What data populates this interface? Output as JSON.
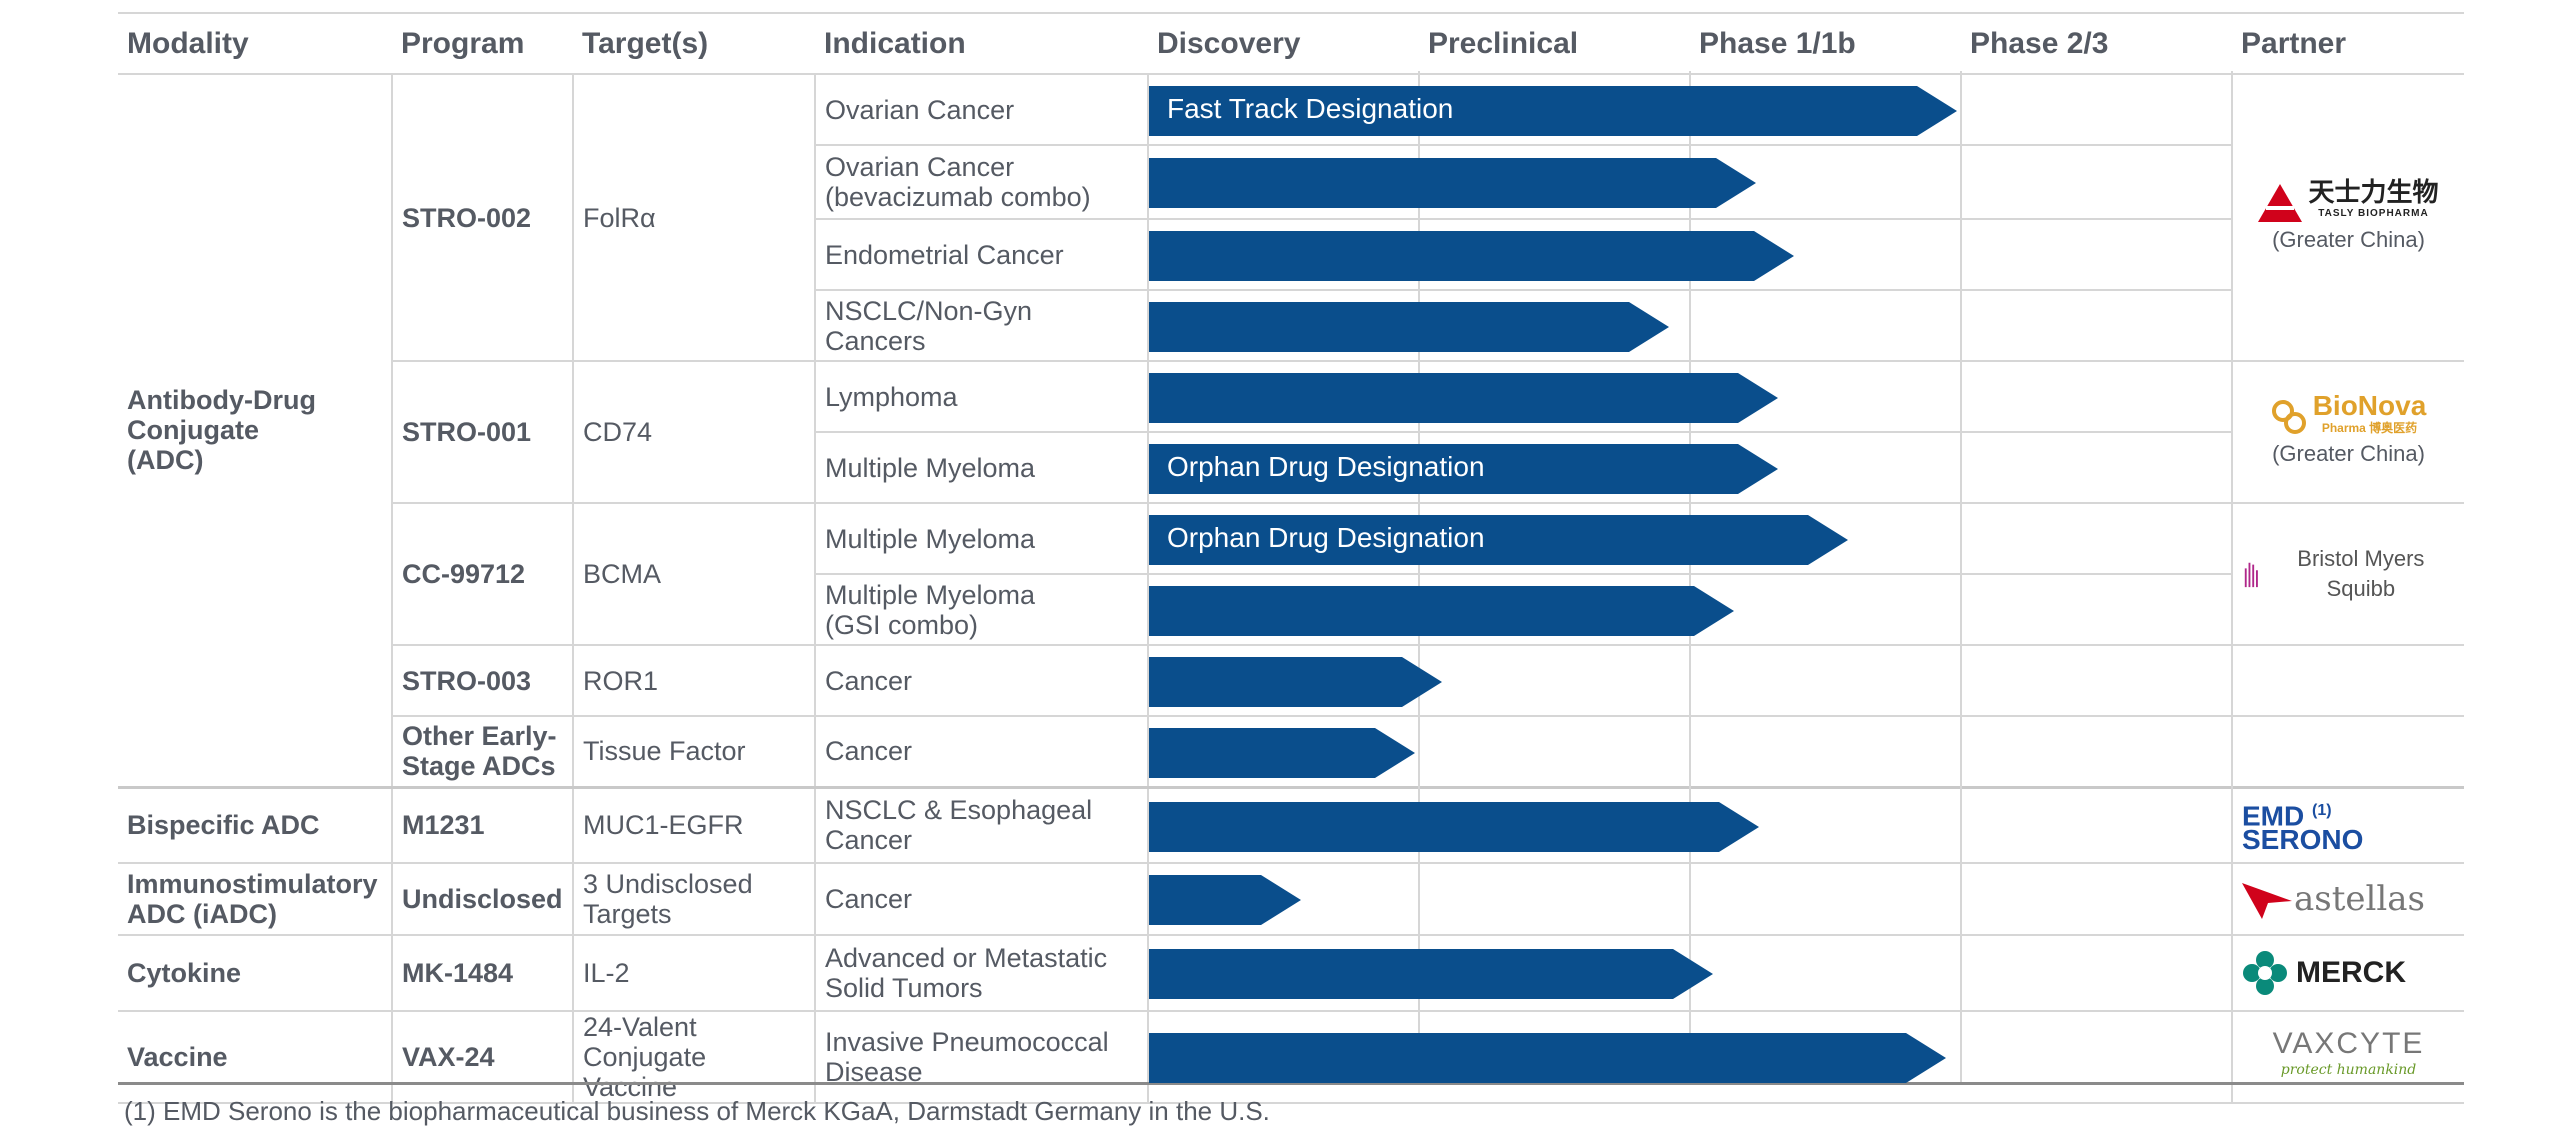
{
  "headers": {
    "modality": "Modality",
    "program": "Program",
    "targets": "Target(s)",
    "indication": "Indication",
    "discovery": "Discovery",
    "preclinical": "Preclinical",
    "phase1": "Phase 1/1b",
    "phase2": "Phase 2/3",
    "partner": "Partner"
  },
  "stages": [
    "Discovery",
    "Preclinical",
    "Phase 1/1b",
    "Phase 2/3"
  ],
  "rows": {
    "r0": {
      "modality": "Antibody-Drug Conjugate (ADC)",
      "program": "STRO-002",
      "target": "FolRα",
      "indication": "Ovarian Cancer",
      "bar_label": "Fast Track Designation",
      "progress_stages": 2.98
    },
    "r1": {
      "indication_l1": "Ovarian Cancer",
      "indication_l2": "(bevacizumab combo)",
      "progress_stages": 2.24
    },
    "r2": {
      "indication": "Endometrial Cancer",
      "progress_stages": 2.38
    },
    "r3": {
      "indication": "NSCLC/Non-Gyn Cancers",
      "progress_stages": 1.92
    },
    "r4": {
      "program": "STRO-001",
      "target": "CD74",
      "indication": "Lymphoma",
      "progress_stages": 2.32
    },
    "r5": {
      "indication": "Multiple Myeloma",
      "bar_label": "Orphan Drug Designation",
      "progress_stages": 2.32
    },
    "r6": {
      "program": "CC-99712",
      "target": "BCMA",
      "indication": "Multiple Myeloma",
      "bar_label": "Orphan Drug Designation",
      "progress_stages": 2.58
    },
    "r7": {
      "indication_l1": "Multiple Myeloma",
      "indication_l2": "(GSI combo)",
      "progress_stages": 2.16
    },
    "r8": {
      "program": "STRO-003",
      "target": "ROR1",
      "indication": "Cancer",
      "progress_stages": 1.08
    },
    "r9": {
      "program_l1": "Other Early-",
      "program_l2": "Stage ADCs",
      "target": "Tissue Factor",
      "indication": "Cancer",
      "progress_stages": 0.98
    },
    "r10": {
      "modality": "Bispecific ADC",
      "program": "M1231",
      "target": "MUC1-EGFR",
      "indication_l1": "NSCLC & Esophageal",
      "indication_l2": "Cancer",
      "progress_stages": 2.25
    },
    "r11": {
      "modality_l1": "Immunostimulatory",
      "modality_l2": "ADC (iADC)",
      "program": "Undisclosed",
      "target_l1": "3 Undisclosed",
      "target_l2": "Targets",
      "indication": "Cancer",
      "progress_stages": 0.56
    },
    "r12": {
      "modality": "Cytokine",
      "program": "MK-1484",
      "target": "IL-2",
      "indication_l1": "Advanced or Metastatic",
      "indication_l2": "Solid Tumors",
      "progress_stages": 2.08
    },
    "r13": {
      "modality": "Vaccine",
      "program": "VAX-24",
      "target_l1": "24-Valent",
      "target_l2": "Conjugate Vaccine",
      "indication_l1": "Invasive Pneumococcal",
      "indication_l2": "Disease",
      "progress_stages": 2.94
    }
  },
  "partners": {
    "tasly": {
      "name_cn": "天士力生物",
      "name_en": "TASLY BIOPHARMA",
      "region": "(Greater China)"
    },
    "bionova": {
      "name": "BioNova",
      "sub": "Pharma 博奥医药",
      "region": "(Greater China)"
    },
    "bms": {
      "name": "Bristol Myers Squibb"
    },
    "emd": {
      "line1": "EMD",
      "line2": "SERONO",
      "footnote_ref": "(1)"
    },
    "astellas": {
      "name": "astellas"
    },
    "merck": {
      "name": "MERCK"
    },
    "vaxcyte": {
      "name": "VAXCYTE",
      "tagline": "protect humankind"
    }
  },
  "footnote": "(1) EMD Serono is the biopharmaceutical business of Merck KGaA, Darmstadt Germany in the U.S.",
  "colors": {
    "bar": "#0a4e8c",
    "grid": "#d6d6d6",
    "text": "#555a63"
  }
}
